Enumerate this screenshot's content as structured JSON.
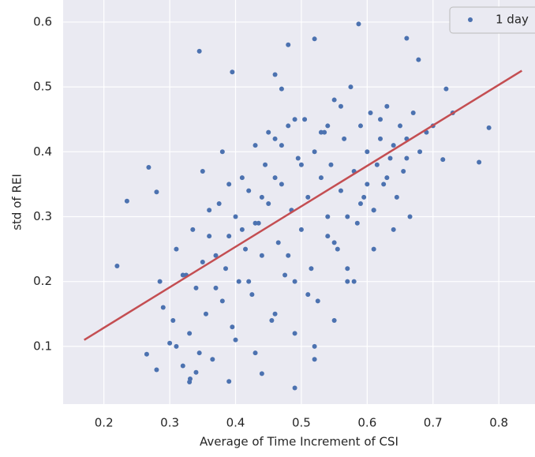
{
  "chart_data": {
    "type": "scatter",
    "x_label": "Average of Time Increment of CSI",
    "y_label": "std of REI",
    "xlim": [
      0.138,
      0.855
    ],
    "ylim": [
      0.011,
      0.634
    ],
    "xticks": [
      0.2,
      0.3,
      0.4,
      0.5,
      0.6,
      0.7,
      0.8
    ],
    "yticks": [
      0.1,
      0.2,
      0.3,
      0.4,
      0.5,
      0.6
    ],
    "grid": true,
    "legend": "upper right",
    "series": [
      {
        "name": "1 day",
        "color": "#4c72b0",
        "x": [
          0.22,
          0.235,
          0.268,
          0.28,
          0.265,
          0.28,
          0.345,
          0.395,
          0.52,
          0.587,
          0.66,
          0.678,
          0.49,
          0.77,
          0.785,
          0.72,
          0.73,
          0.7,
          0.715,
          0.33,
          0.331,
          0.44,
          0.39,
          0.46,
          0.47,
          0.48,
          0.285,
          0.29,
          0.3,
          0.305,
          0.31,
          0.32,
          0.325,
          0.33,
          0.335,
          0.34,
          0.345,
          0.35,
          0.355,
          0.36,
          0.365,
          0.37,
          0.375,
          0.38,
          0.385,
          0.39,
          0.395,
          0.4,
          0.405,
          0.41,
          0.415,
          0.42,
          0.425,
          0.43,
          0.435,
          0.44,
          0.445,
          0.45,
          0.455,
          0.46,
          0.465,
          0.47,
          0.475,
          0.48,
          0.485,
          0.49,
          0.495,
          0.5,
          0.505,
          0.51,
          0.515,
          0.52,
          0.525,
          0.53,
          0.535,
          0.54,
          0.545,
          0.55,
          0.555,
          0.56,
          0.565,
          0.57,
          0.575,
          0.58,
          0.585,
          0.59,
          0.595,
          0.6,
          0.605,
          0.61,
          0.615,
          0.62,
          0.625,
          0.63,
          0.635,
          0.64,
          0.645,
          0.65,
          0.655,
          0.66,
          0.665,
          0.67,
          0.68,
          0.69,
          0.31,
          0.34,
          0.37,
          0.4,
          0.43,
          0.46,
          0.49,
          0.52,
          0.55,
          0.58,
          0.61,
          0.64,
          0.36,
          0.42,
          0.48,
          0.54,
          0.6,
          0.66,
          0.45,
          0.51,
          0.57,
          0.63,
          0.39,
          0.47,
          0.53,
          0.59,
          0.35,
          0.41,
          0.44,
          0.5,
          0.56,
          0.62,
          0.38,
          0.43,
          0.49,
          0.55,
          0.61,
          0.32,
          0.57,
          0.52,
          0.46,
          0.54
        ],
        "values": [
          0.224,
          0.324,
          0.376,
          0.338,
          0.088,
          0.064,
          0.555,
          0.523,
          0.574,
          0.597,
          0.575,
          0.542,
          0.036,
          0.384,
          0.437,
          0.497,
          0.46,
          0.44,
          0.388,
          0.045,
          0.05,
          0.058,
          0.046,
          0.519,
          0.497,
          0.565,
          0.2,
          0.16,
          0.105,
          0.14,
          0.25,
          0.07,
          0.21,
          0.12,
          0.28,
          0.19,
          0.09,
          0.23,
          0.15,
          0.27,
          0.08,
          0.24,
          0.32,
          0.17,
          0.22,
          0.27,
          0.13,
          0.3,
          0.2,
          0.36,
          0.25,
          0.34,
          0.18,
          0.41,
          0.29,
          0.24,
          0.38,
          0.32,
          0.14,
          0.42,
          0.26,
          0.35,
          0.21,
          0.44,
          0.31,
          0.2,
          0.39,
          0.28,
          0.45,
          0.33,
          0.22,
          0.4,
          0.17,
          0.36,
          0.43,
          0.27,
          0.38,
          0.48,
          0.25,
          0.34,
          0.42,
          0.3,
          0.5,
          0.37,
          0.29,
          0.44,
          0.33,
          0.4,
          0.46,
          0.31,
          0.38,
          0.42,
          0.35,
          0.47,
          0.39,
          0.41,
          0.33,
          0.44,
          0.37,
          0.42,
          0.3,
          0.46,
          0.4,
          0.43,
          0.1,
          0.06,
          0.19,
          0.11,
          0.09,
          0.15,
          0.12,
          0.08,
          0.26,
          0.2,
          0.25,
          0.28,
          0.31,
          0.2,
          0.24,
          0.3,
          0.35,
          0.39,
          0.43,
          0.18,
          0.22,
          0.36,
          0.35,
          0.41,
          0.43,
          0.32,
          0.37,
          0.28,
          0.33,
          0.38,
          0.47,
          0.45,
          0.4,
          0.29,
          0.45,
          0.14,
          0.31,
          0.21,
          0.2,
          0.1,
          0.36,
          0.44
        ]
      }
    ],
    "fit_line": {
      "color": "#c44e52",
      "x": [
        0.17,
        0.835
      ],
      "y": [
        0.11,
        0.525
      ]
    }
  }
}
